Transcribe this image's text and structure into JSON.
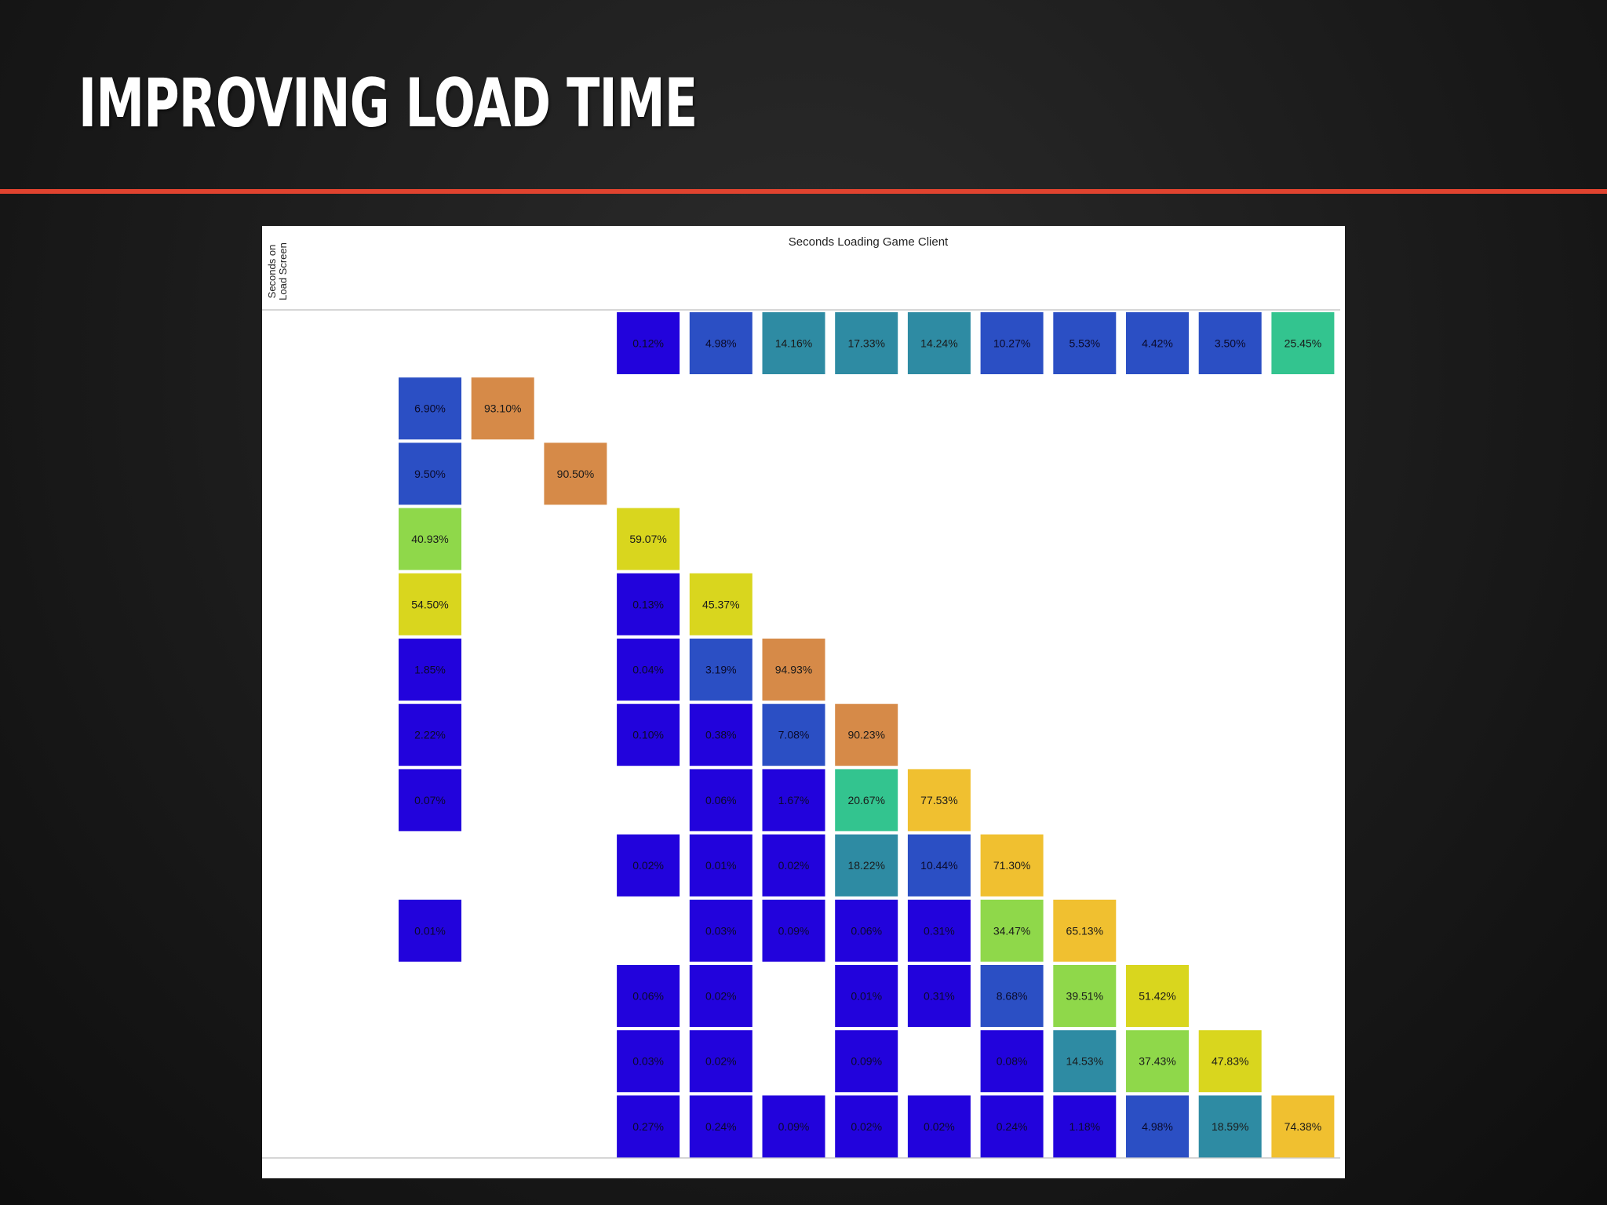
{
  "slide": {
    "title": "IMPROVING LOAD TIME",
    "accent_color": "#e0432f"
  },
  "chart_data": {
    "type": "heatmap",
    "title": "Seconds Loading Game Client",
    "ylabel_line1": "Seconds on",
    "ylabel_line2": "Load Screen",
    "grid": false,
    "color_scale": [
      "#2203dc",
      "#2b4fc4",
      "#2e8ba3",
      "#33c48f",
      "#8fd84a",
      "#d9d61e",
      "#f0c030",
      "#d68a48"
    ],
    "cells": [
      {
        "row": 0,
        "col": 3,
        "value": 0.12
      },
      {
        "row": 0,
        "col": 4,
        "value": 4.98
      },
      {
        "row": 0,
        "col": 5,
        "value": 14.16
      },
      {
        "row": 0,
        "col": 6,
        "value": 17.33
      },
      {
        "row": 0,
        "col": 7,
        "value": 14.24
      },
      {
        "row": 0,
        "col": 8,
        "value": 10.27
      },
      {
        "row": 0,
        "col": 9,
        "value": 5.53
      },
      {
        "row": 0,
        "col": 10,
        "value": 4.42
      },
      {
        "row": 0,
        "col": 11,
        "value": 3.5
      },
      {
        "row": 0,
        "col": 12,
        "value": 25.45
      },
      {
        "row": 1,
        "col": 0,
        "value": 6.9
      },
      {
        "row": 1,
        "col": 1,
        "value": 93.1
      },
      {
        "row": 2,
        "col": 0,
        "value": 9.5
      },
      {
        "row": 2,
        "col": 2,
        "value": 90.5
      },
      {
        "row": 3,
        "col": 0,
        "value": 40.93
      },
      {
        "row": 3,
        "col": 3,
        "value": 59.07
      },
      {
        "row": 4,
        "col": 0,
        "value": 54.5
      },
      {
        "row": 4,
        "col": 3,
        "value": 0.13
      },
      {
        "row": 4,
        "col": 4,
        "value": 45.37
      },
      {
        "row": 5,
        "col": 0,
        "value": 1.85
      },
      {
        "row": 5,
        "col": 3,
        "value": 0.04
      },
      {
        "row": 5,
        "col": 4,
        "value": 3.19
      },
      {
        "row": 5,
        "col": 5,
        "value": 94.93
      },
      {
        "row": 6,
        "col": 0,
        "value": 2.22
      },
      {
        "row": 6,
        "col": 3,
        "value": 0.1
      },
      {
        "row": 6,
        "col": 4,
        "value": 0.38
      },
      {
        "row": 6,
        "col": 5,
        "value": 7.08
      },
      {
        "row": 6,
        "col": 6,
        "value": 90.23
      },
      {
        "row": 7,
        "col": 0,
        "value": 0.07
      },
      {
        "row": 7,
        "col": 4,
        "value": 0.06
      },
      {
        "row": 7,
        "col": 5,
        "value": 1.67
      },
      {
        "row": 7,
        "col": 6,
        "value": 20.67
      },
      {
        "row": 7,
        "col": 7,
        "value": 77.53
      },
      {
        "row": 8,
        "col": 3,
        "value": 0.02
      },
      {
        "row": 8,
        "col": 4,
        "value": 0.01
      },
      {
        "row": 8,
        "col": 5,
        "value": 0.02
      },
      {
        "row": 8,
        "col": 6,
        "value": 18.22
      },
      {
        "row": 8,
        "col": 7,
        "value": 10.44
      },
      {
        "row": 8,
        "col": 8,
        "value": 71.3
      },
      {
        "row": 9,
        "col": 0,
        "value": 0.01
      },
      {
        "row": 9,
        "col": 4,
        "value": 0.03
      },
      {
        "row": 9,
        "col": 5,
        "value": 0.09
      },
      {
        "row": 9,
        "col": 6,
        "value": 0.06
      },
      {
        "row": 9,
        "col": 7,
        "value": 0.31
      },
      {
        "row": 9,
        "col": 8,
        "value": 34.47
      },
      {
        "row": 9,
        "col": 9,
        "value": 65.13
      },
      {
        "row": 10,
        "col": 3,
        "value": 0.06
      },
      {
        "row": 10,
        "col": 4,
        "value": 0.02
      },
      {
        "row": 10,
        "col": 6,
        "value": 0.01
      },
      {
        "row": 10,
        "col": 7,
        "value": 0.31
      },
      {
        "row": 10,
        "col": 8,
        "value": 8.68
      },
      {
        "row": 10,
        "col": 9,
        "value": 39.51
      },
      {
        "row": 10,
        "col": 10,
        "value": 51.42
      },
      {
        "row": 11,
        "col": 3,
        "value": 0.03
      },
      {
        "row": 11,
        "col": 4,
        "value": 0.02
      },
      {
        "row": 11,
        "col": 6,
        "value": 0.09
      },
      {
        "row": 11,
        "col": 8,
        "value": 0.08
      },
      {
        "row": 11,
        "col": 9,
        "value": 14.53
      },
      {
        "row": 11,
        "col": 10,
        "value": 37.43
      },
      {
        "row": 11,
        "col": 11,
        "value": 47.83
      },
      {
        "row": 12,
        "col": 3,
        "value": 0.27
      },
      {
        "row": 12,
        "col": 4,
        "value": 0.24
      },
      {
        "row": 12,
        "col": 5,
        "value": 0.09
      },
      {
        "row": 12,
        "col": 6,
        "value": 0.02
      },
      {
        "row": 12,
        "col": 7,
        "value": 0.02
      },
      {
        "row": 12,
        "col": 8,
        "value": 0.24
      },
      {
        "row": 12,
        "col": 9,
        "value": 1.18
      },
      {
        "row": 12,
        "col": 10,
        "value": 4.98
      },
      {
        "row": 12,
        "col": 11,
        "value": 18.59
      },
      {
        "row": 12,
        "col": 12,
        "value": 74.38
      }
    ]
  }
}
